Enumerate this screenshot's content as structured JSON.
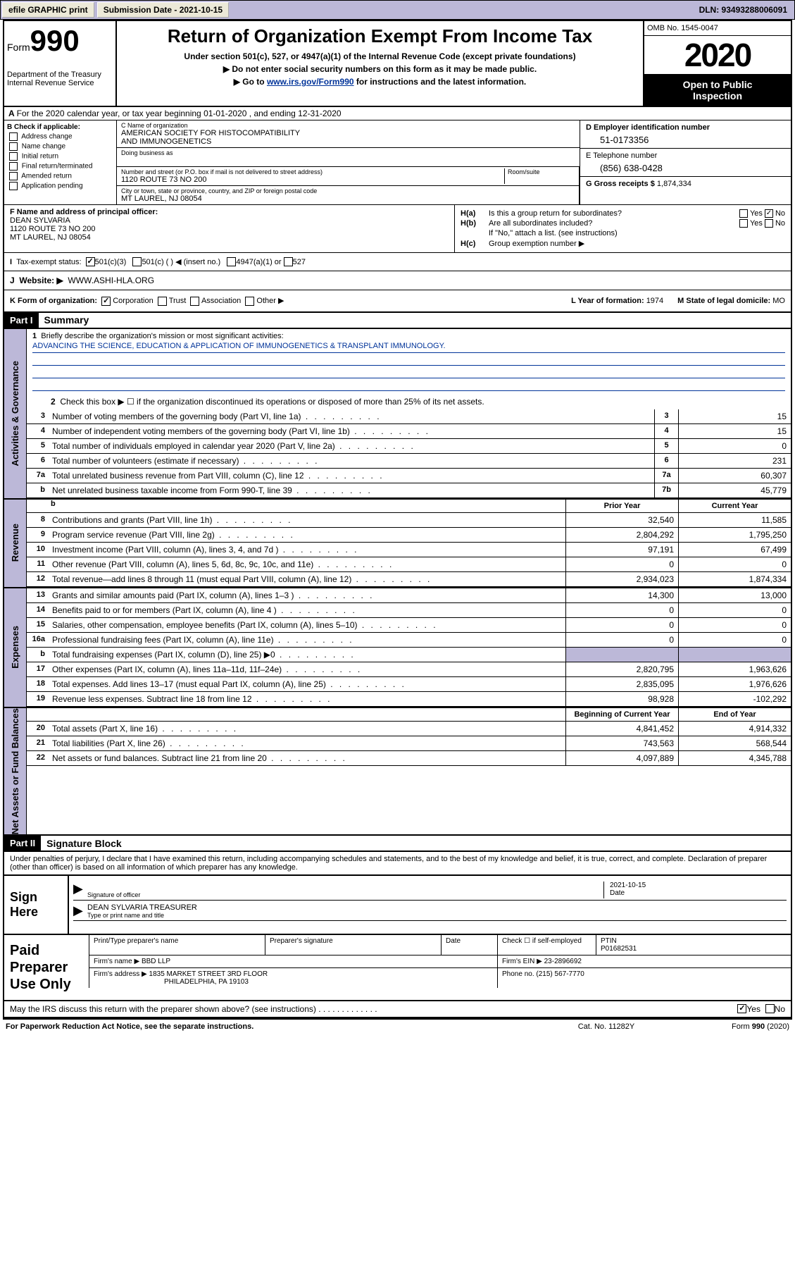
{
  "topbar": {
    "efile": "efile GRAPHIC print",
    "submission_label": "Submission Date - 2021-10-15",
    "dln": "DLN: 93493288006091"
  },
  "header": {
    "form_prefix": "Form",
    "form_num": "990",
    "dept": "Department of the Treasury\nInternal Revenue Service",
    "title": "Return of Organization Exempt From Income Tax",
    "subtitle": "Under section 501(c), 527, or 4947(a)(1) of the Internal Revenue Code (except private foundations)",
    "note1": "▶ Do not enter social security numbers on this form as it may be made public.",
    "note2_pre": "▶ Go to ",
    "note2_link": "www.irs.gov/Form990",
    "note2_post": " for instructions and the latest information.",
    "omb": "OMB No. 1545-0047",
    "year": "2020",
    "inspect1": "Open to Public",
    "inspect2": "Inspection"
  },
  "row_a": "For the 2020 calendar year, or tax year beginning 01-01-2020    , and ending 12-31-2020",
  "b": {
    "label": "B Check if applicable:",
    "opts": [
      "Address change",
      "Name change",
      "Initial return",
      "Final return/terminated",
      "Amended return",
      "Application pending"
    ]
  },
  "c": {
    "name_lbl": "C Name of organization",
    "name": "AMERICAN SOCIETY FOR HISTOCOMPATIBILITY\nAND IMMUNOGENETICS",
    "dba_lbl": "Doing business as",
    "addr_lbl": "Number and street (or P.O. box if mail is not delivered to street address)",
    "room_lbl": "Room/suite",
    "addr": "1120 ROUTE 73 NO 200",
    "city_lbl": "City or town, state or province, country, and ZIP or foreign postal code",
    "city": "MT LAUREL, NJ  08054"
  },
  "d": {
    "ein_lbl": "D Employer identification number",
    "ein": "51-0173356",
    "tel_lbl": "E Telephone number",
    "tel": "(856) 638-0428",
    "gross_lbl": "G Gross receipts $",
    "gross": "1,874,334"
  },
  "f": {
    "lbl": "F  Name and address of principal officer:",
    "name": "DEAN SYLVARIA",
    "addr1": "1120 ROUTE 73 NO 200",
    "addr2": "MT LAUREL, NJ  08054"
  },
  "h": {
    "a_lbl": "H(a)",
    "a_text": "Is this a group return for subordinates?",
    "b_lbl": "H(b)",
    "b_text": "Are all subordinates included?",
    "note": "If \"No,\" attach a list. (see instructions)",
    "c_lbl": "H(c)",
    "c_text": "Group exemption number ▶",
    "yes": "Yes",
    "no": "No"
  },
  "i": {
    "lbl": "Tax-exempt status:",
    "o1": "501(c)(3)",
    "o2": "501(c) (  ) ◀ (insert no.)",
    "o3": "4947(a)(1) or",
    "o4": "527"
  },
  "j": {
    "lbl": "J",
    "text": "Website: ▶",
    "url": "WWW.ASHI-HLA.ORG"
  },
  "k": {
    "lbl": "K Form of organization:",
    "corp": "Corporation",
    "trust": "Trust",
    "assoc": "Association",
    "other": "Other ▶"
  },
  "l": {
    "lbl": "L Year of formation:",
    "val": "1974"
  },
  "m": {
    "lbl": "M State of legal domicile:",
    "val": "MO"
  },
  "part1": {
    "hdr": "Part I",
    "title": "Summary",
    "q1": "Briefly describe the organization's mission or most significant activities:",
    "mission": "ADVANCING THE SCIENCE, EDUCATION & APPLICATION OF IMMUNOGENETICS & TRANSPLANT IMMUNOLOGY.",
    "q2": "Check this box ▶ ☐  if the organization discontinued its operations or disposed of more than 25% of its net assets.",
    "vtab1": "Activities & Governance",
    "vtab2": "Revenue",
    "vtab3": "Expenses",
    "vtab4": "Net Assets or Fund Balances",
    "prior_hdr": "Prior Year",
    "curr_hdr": "Current Year",
    "boy_hdr": "Beginning of Current Year",
    "eoy_hdr": "End of Year",
    "lines_gov": [
      {
        "n": "3",
        "d": "Number of voting members of the governing body (Part VI, line 1a)",
        "nb": "3",
        "v": "15"
      },
      {
        "n": "4",
        "d": "Number of independent voting members of the governing body (Part VI, line 1b)",
        "nb": "4",
        "v": "15"
      },
      {
        "n": "5",
        "d": "Total number of individuals employed in calendar year 2020 (Part V, line 2a)",
        "nb": "5",
        "v": "0"
      },
      {
        "n": "6",
        "d": "Total number of volunteers (estimate if necessary)",
        "nb": "6",
        "v": "231"
      },
      {
        "n": "7a",
        "d": "Total unrelated business revenue from Part VIII, column (C), line 12",
        "nb": "7a",
        "v": "60,307"
      },
      {
        "n": "b",
        "d": "Net unrelated business taxable income from Form 990-T, line 39",
        "nb": "7b",
        "v": "45,779"
      }
    ],
    "lines_rev": [
      {
        "n": "8",
        "d": "Contributions and grants (Part VIII, line 1h)",
        "p": "32,540",
        "c": "11,585"
      },
      {
        "n": "9",
        "d": "Program service revenue (Part VIII, line 2g)",
        "p": "2,804,292",
        "c": "1,795,250"
      },
      {
        "n": "10",
        "d": "Investment income (Part VIII, column (A), lines 3, 4, and 7d )",
        "p": "97,191",
        "c": "67,499"
      },
      {
        "n": "11",
        "d": "Other revenue (Part VIII, column (A), lines 5, 6d, 8c, 9c, 10c, and 11e)",
        "p": "0",
        "c": "0"
      },
      {
        "n": "12",
        "d": "Total revenue—add lines 8 through 11 (must equal Part VIII, column (A), line 12)",
        "p": "2,934,023",
        "c": "1,874,334"
      }
    ],
    "lines_exp": [
      {
        "n": "13",
        "d": "Grants and similar amounts paid (Part IX, column (A), lines 1–3 )",
        "p": "14,300",
        "c": "13,000"
      },
      {
        "n": "14",
        "d": "Benefits paid to or for members (Part IX, column (A), line 4 )",
        "p": "0",
        "c": "0"
      },
      {
        "n": "15",
        "d": "Salaries, other compensation, employee benefits (Part IX, column (A), lines 5–10)",
        "p": "0",
        "c": "0"
      },
      {
        "n": "16a",
        "d": "Professional fundraising fees (Part IX, column (A), line 11e)",
        "p": "0",
        "c": "0"
      },
      {
        "n": "b",
        "d": "Total fundraising expenses (Part IX, column (D), line 25) ▶0",
        "p": "",
        "c": "",
        "shade": true
      },
      {
        "n": "17",
        "d": "Other expenses (Part IX, column (A), lines 11a–11d, 11f–24e)",
        "p": "2,820,795",
        "c": "1,963,626"
      },
      {
        "n": "18",
        "d": "Total expenses. Add lines 13–17 (must equal Part IX, column (A), line 25)",
        "p": "2,835,095",
        "c": "1,976,626"
      },
      {
        "n": "19",
        "d": "Revenue less expenses. Subtract line 18 from line 12",
        "p": "98,928",
        "c": "-102,292"
      }
    ],
    "lines_net": [
      {
        "n": "20",
        "d": "Total assets (Part X, line 16)",
        "p": "4,841,452",
        "c": "4,914,332"
      },
      {
        "n": "21",
        "d": "Total liabilities (Part X, line 26)",
        "p": "743,563",
        "c": "568,544"
      },
      {
        "n": "22",
        "d": "Net assets or fund balances. Subtract line 21 from line 20",
        "p": "4,097,889",
        "c": "4,345,788"
      }
    ]
  },
  "part2": {
    "hdr": "Part II",
    "title": "Signature Block",
    "penalties": "Under penalties of perjury, I declare that I have examined this return, including accompanying schedules and statements, and to the best of my knowledge and belief, it is true, correct, and complete. Declaration of preparer (other than officer) is based on all information of which preparer has any knowledge."
  },
  "sign": {
    "here": "Sign Here",
    "sig_lbl": "Signature of officer",
    "date_lbl": "Date",
    "date": "2021-10-15",
    "name": "DEAN SYLVARIA TREASURER",
    "name_lbl": "Type or print name and title"
  },
  "prep": {
    "title": "Paid Preparer Use Only",
    "h1": "Print/Type preparer's name",
    "h2": "Preparer's signature",
    "h3": "Date",
    "h4_pre": "Check ☐ if self-employed",
    "h5": "PTIN",
    "ptin": "P01682531",
    "firm_lbl": "Firm's name    ▶",
    "firm": "BBD LLP",
    "ein_lbl": "Firm's EIN ▶",
    "ein": "23-2896692",
    "addr_lbl": "Firm's address ▶",
    "addr1": "1835 MARKET STREET 3RD FLOOR",
    "addr2": "PHILADELPHIA, PA  19103",
    "phone_lbl": "Phone no.",
    "phone": "(215) 567-7770"
  },
  "discuss": {
    "text": "May the IRS discuss this return with the preparer shown above? (see instructions)",
    "yes": "Yes",
    "no": "No"
  },
  "footer": {
    "left": "For Paperwork Reduction Act Notice, see the separate instructions.",
    "mid": "Cat. No. 11282Y",
    "right": "Form 990 (2020)"
  }
}
